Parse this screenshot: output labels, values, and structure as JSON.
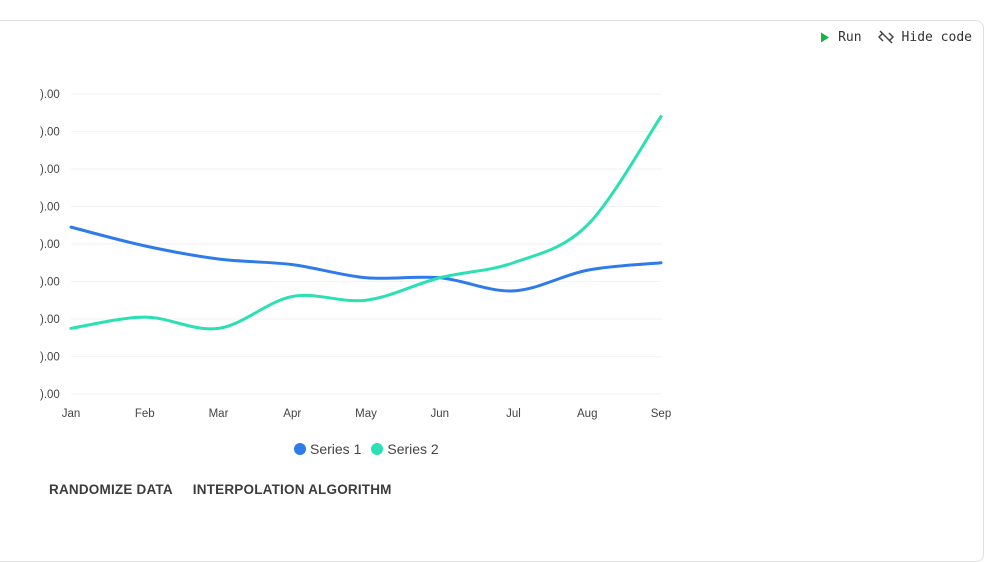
{
  "toolbar": {
    "run_label": "Run",
    "hide_code_label": "Hide code",
    "run_icon": "play-icon",
    "hide_code_icon": "code-off-icon",
    "run_color": "#16b445"
  },
  "chart_data": {
    "type": "line",
    "categories": [
      "Jan",
      "Feb",
      "Mar",
      "Apr",
      "May",
      "Jun",
      "Jul",
      "Aug",
      "Sep"
    ],
    "y_tick_labels": [
      ").00",
      ").00",
      ").00",
      ").00",
      ").00",
      ").00",
      ").00",
      ").00",
      ").00"
    ],
    "ylim": [
      0,
      8
    ],
    "grid": true,
    "legend_position": "bottom",
    "series": [
      {
        "name": "Series 1",
        "color": "#2f7bea",
        "values": [
          4.45,
          3.95,
          3.6,
          3.45,
          3.1,
          3.1,
          2.75,
          3.3,
          3.5
        ]
      },
      {
        "name": "Series 2",
        "color": "#2be0b3",
        "values": [
          1.75,
          2.05,
          1.75,
          2.6,
          2.5,
          3.1,
          3.5,
          4.5,
          7.4
        ]
      }
    ]
  },
  "actions": {
    "randomize_label": "RANDOMIZE DATA",
    "interpolation_label": "INTERPOLATION ALGORITHM"
  }
}
